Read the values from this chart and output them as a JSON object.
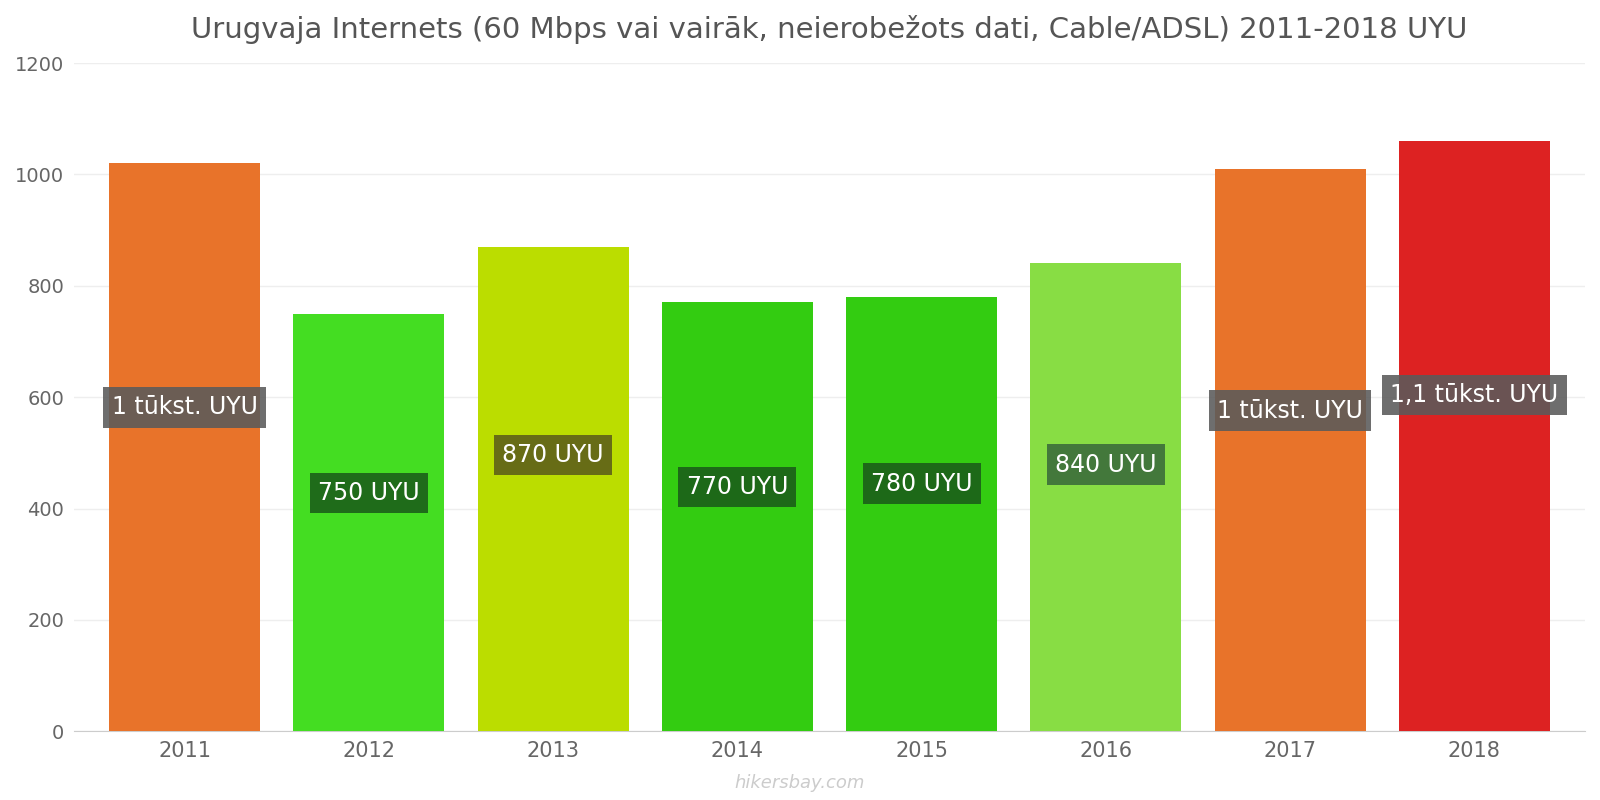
{
  "years": [
    2011,
    2012,
    2013,
    2014,
    2015,
    2016,
    2017,
    2018
  ],
  "values": [
    1020,
    750,
    870,
    770,
    780,
    840,
    1010,
    1060
  ],
  "labels": [
    "1 tūkst. UYU",
    "750 UYU",
    "870 UYU",
    "770 UYU",
    "780 UYU",
    "840 UYU",
    "1 tūkst. UYU",
    "1,1 tūkst. UYU"
  ],
  "bar_colors": [
    "#E8732A",
    "#44DD22",
    "#BBDD00",
    "#33CC11",
    "#33CC11",
    "#88DD44",
    "#E8732A",
    "#DD2222"
  ],
  "label_bg_colors": [
    "#5a5a5a",
    "#1a5c1a",
    "#5c5c1a",
    "#1a5c1a",
    "#1a5c1a",
    "#3a6a3a",
    "#5a5a5a",
    "#5a5a5a"
  ],
  "title": "Urugvaja Internets (60 Mbps vai vairāk, neierobežots dati, Cable/ADSL) 2011-2018 UYU",
  "ylim": [
    0,
    1200
  ],
  "yticks": [
    0,
    200,
    400,
    600,
    800,
    1000,
    1200
  ],
  "watermark": "hikersbay.com",
  "title_fontsize": 21,
  "label_fontsize": 17,
  "bar_width": 0.82
}
